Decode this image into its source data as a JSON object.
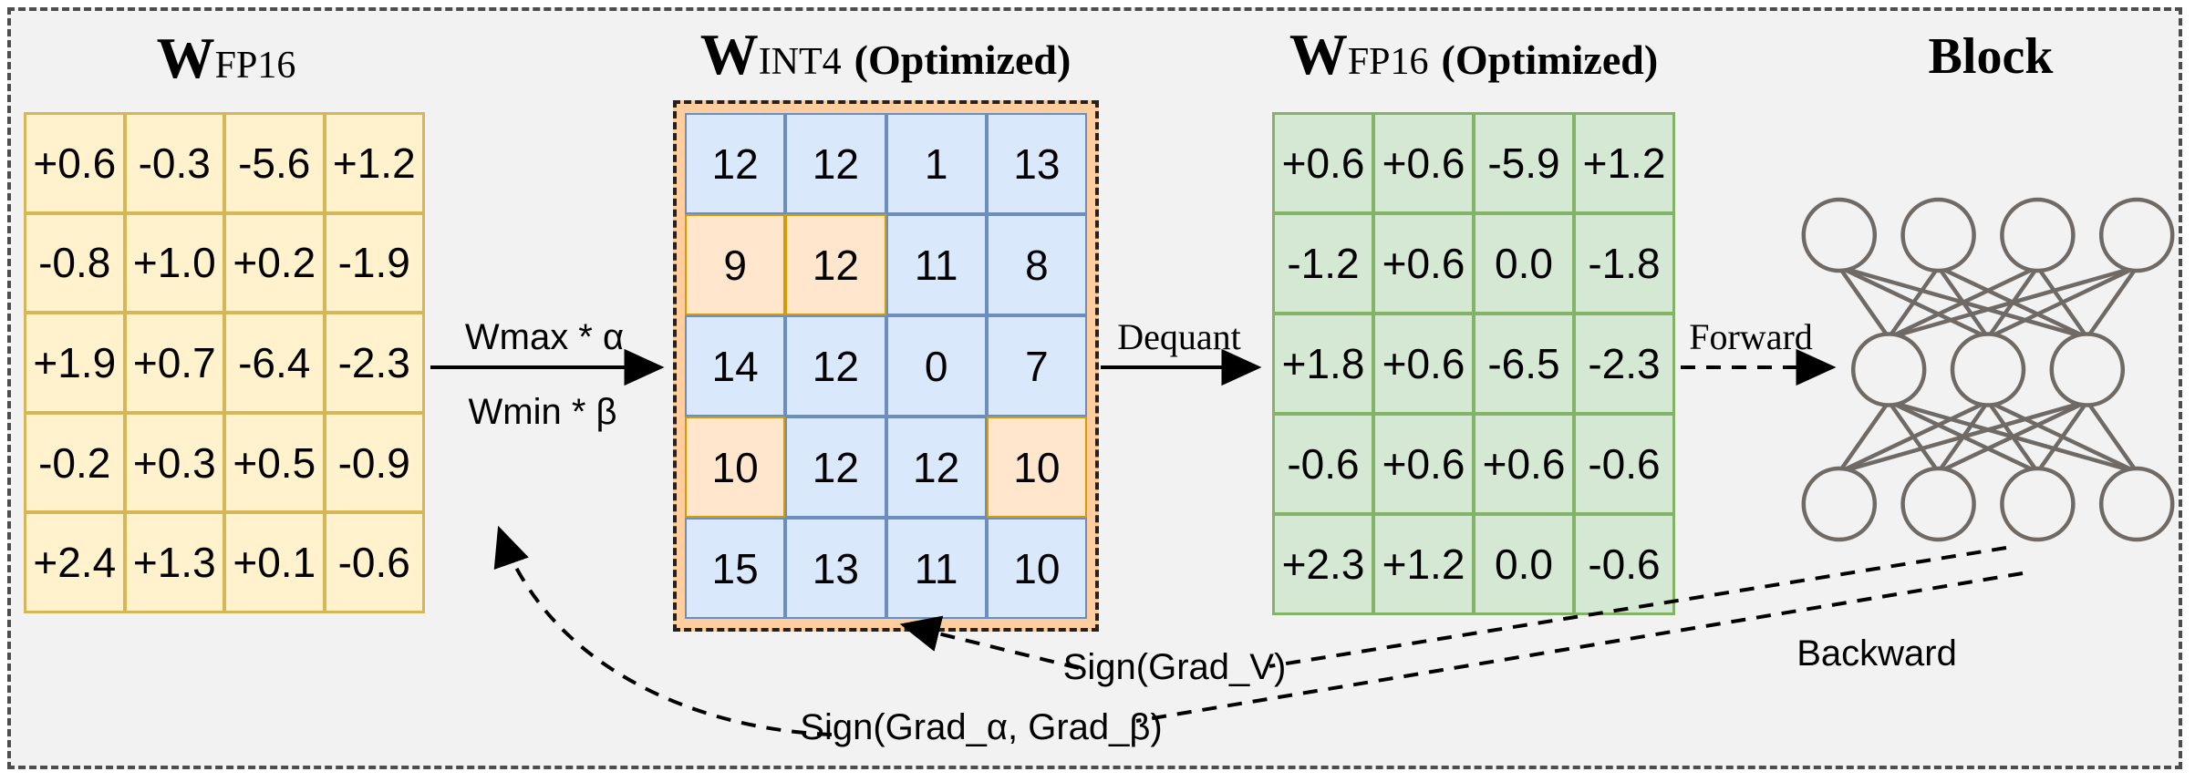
{
  "labels": {
    "quant_top": "Wmax * α",
    "quant_bottom": "Wmin * β",
    "dequant": "Dequant",
    "forward": "Forward",
    "backward": "Backward",
    "grad_v": "Sign(Grad_V)",
    "grad_ab": "Sign(Grad_α, Grad_β)",
    "block_title": "Block"
  },
  "matrices": {
    "fp16": {
      "title_main": "W",
      "title_sub": "FP16",
      "title_suffix": "",
      "rows": [
        [
          "+0.6",
          "-0.3",
          "-5.6",
          "+1.2"
        ],
        [
          "-0.8",
          "+1.0",
          "+0.2",
          "-1.9"
        ],
        [
          "+1.9",
          "+0.7",
          "-6.4",
          "-2.3"
        ],
        [
          "-0.2",
          "+0.3",
          "+0.5",
          "-0.9"
        ],
        [
          "+2.4",
          "+1.3",
          "+0.1",
          "-0.6"
        ]
      ]
    },
    "int4": {
      "title_main": "W",
      "title_sub": "INT4",
      "title_suffix": "(Optimized)",
      "rows": [
        [
          "12",
          "12",
          "1",
          "13"
        ],
        [
          "9",
          "12",
          "11",
          "8"
        ],
        [
          "14",
          "12",
          "0",
          "7"
        ],
        [
          "10",
          "12",
          "12",
          "10"
        ],
        [
          "15",
          "13",
          "11",
          "10"
        ]
      ],
      "highlight_cells": [
        [
          1,
          0
        ],
        [
          1,
          1
        ],
        [
          3,
          0
        ],
        [
          3,
          3
        ]
      ]
    },
    "fp16_opt": {
      "title_main": "W",
      "title_sub": "FP16",
      "title_suffix": "(Optimized)",
      "rows": [
        [
          "+0.6",
          "+0.6",
          "-5.9",
          "+1.2"
        ],
        [
          "-1.2",
          "+0.6",
          "0.0",
          "-1.8"
        ],
        [
          "+1.8",
          "+0.6",
          "-6.5",
          "-2.3"
        ],
        [
          "-0.6",
          "+0.6",
          "+0.6",
          "-0.6"
        ],
        [
          "+2.3",
          "+1.2",
          "0.0",
          "-0.6"
        ]
      ]
    }
  },
  "block": {
    "layers": [
      4,
      3,
      4
    ]
  },
  "colors": {
    "bg": "#F2F2F2",
    "yellow_fill": "#FFF2CC",
    "yellow_border": "#D6B656",
    "blue_fill": "#DAE8FC",
    "blue_border": "#6C8EBF",
    "orange_fill": "#FFE6CC",
    "orange_border": "#D79B00",
    "band_fill": "#FFCD9E",
    "green_fill": "#D5E8D4",
    "green_border": "#82B366",
    "node_stroke": "#6F6A66",
    "arrow_color": "#000000"
  }
}
